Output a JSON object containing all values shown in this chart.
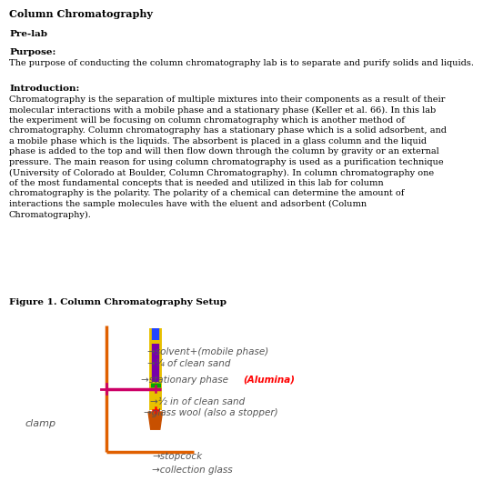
{
  "title": "Column Chromatography",
  "pre_lab": "Pre-lab",
  "purpose_header": "Purpose:",
  "purpose_text": "The purpose of conducting the column chromatography lab is to separate and purify solids and liquids.",
  "intro_header": "Introduction:",
  "intro_lines": [
    "Chromatography is the separation of multiple mixtures into their components as a result of their",
    "molecular interactions with a mobile phase and a stationary phase (Keller et al. 66). In this lab",
    "the experiment will be focusing on column chromatography which is another method of",
    "chromatography. Column chromatography has a stationary phase which is a solid adsorbent, and",
    "a mobile phase which is the liquids. The absorbent is placed in a glass column and the liquid",
    "phase is added to the top and will then flow down through the column by gravity or an external",
    "pressure. The main reason for using column chromatography is used as a purification technique",
    "(University of Colorado at Boulder, Column Chromatography). In column chromatography one",
    "of the most fundamental concepts that is needed and utilized in this lab for column",
    "chromatography is the polarity. The polarity of a chemical can determine the amount of",
    "interactions the sample molecules have with the eluent and adsorbent (Column",
    "Chromatography)."
  ],
  "figure_caption": "Figure 1. Column Chromatography Setup",
  "background_color": "#ffffff",
  "text_color": "#000000",
  "stand_color": "#e06000",
  "column_yellow": "#e8c000",
  "column_blue": "#2244ff",
  "column_purple": "#7700aa",
  "column_green": "#00aa00",
  "clamp_color": "#cc0066",
  "ann_color": "#555555",
  "alumina_color": "#ff0000",
  "stopcock_color": "#c85000"
}
